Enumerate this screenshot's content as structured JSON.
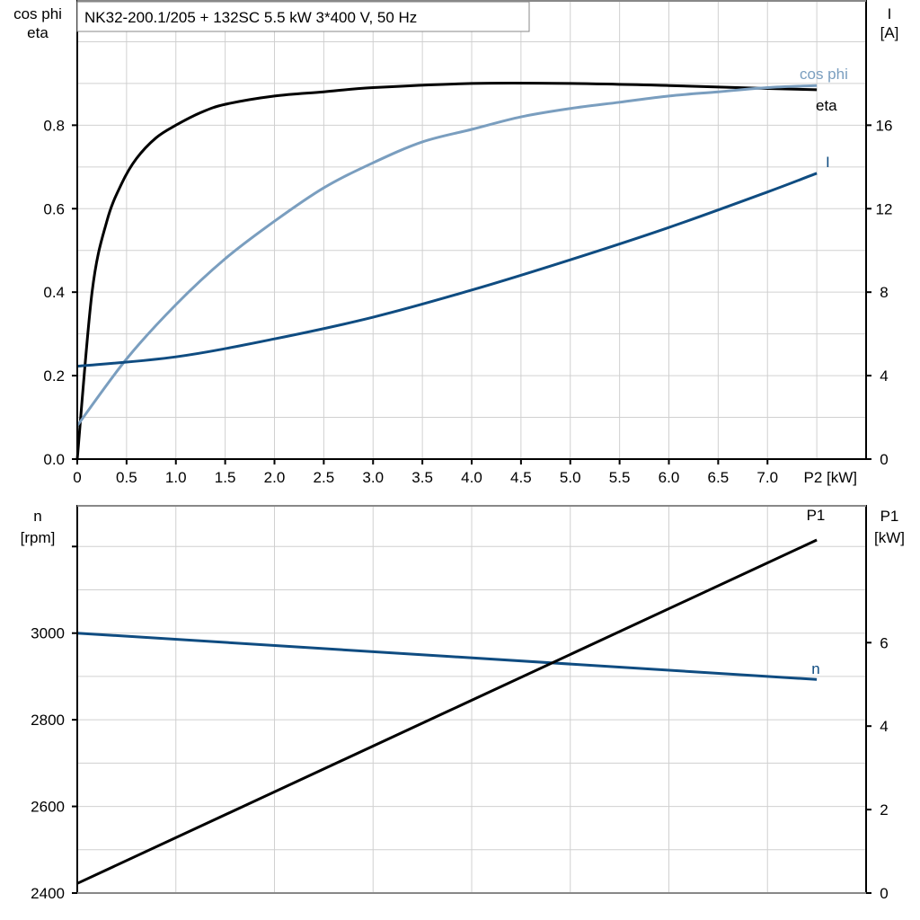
{
  "title": "NK32-200.1/205 + 132SC   5.5 kW   3*400 V, 50 Hz",
  "colors": {
    "eta": "#000000",
    "cosphi": "#7a9ebf",
    "I": "#0f4c81",
    "n": "#0f4c81",
    "P1": "#000000",
    "grid": "#d0d0d0"
  },
  "chart_data": [
    {
      "type": "line",
      "title": "NK32-200.1/205 + 132SC   5.5 kW   3*400 V, 50 Hz",
      "xlabel": "P2 [kW]",
      "ylabel_left": [
        "cos phi",
        "eta"
      ],
      "ylabel_right": [
        "I",
        "[A]"
      ],
      "xlim": [
        0,
        8
      ],
      "ylim_left": [
        0,
        1.1
      ],
      "ylim_right": [
        0,
        22
      ],
      "x_ticks": [
        "0",
        "0.5",
        "1.0",
        "1.5",
        "2.0",
        "2.5",
        "3.0",
        "3.5",
        "4.0",
        "4.5",
        "5.0",
        "5.5",
        "6.0",
        "6.5",
        "7.0"
      ],
      "y_left_ticks": [
        "0.0",
        "0.2",
        "0.4",
        "0.6",
        "0.8"
      ],
      "y_right_ticks": [
        "0",
        "4",
        "8",
        "12",
        "16"
      ],
      "grid": true,
      "series": [
        {
          "name": "eta",
          "axis": "left",
          "x": [
            0,
            0.15,
            0.3,
            0.45,
            0.6,
            0.8,
            1.0,
            1.25,
            1.5,
            2.0,
            2.5,
            3.0,
            4.0,
            5.0,
            6.0,
            7.0,
            7.5
          ],
          "y": [
            0,
            0.4,
            0.57,
            0.66,
            0.72,
            0.77,
            0.8,
            0.83,
            0.85,
            0.87,
            0.88,
            0.89,
            0.9,
            0.9,
            0.895,
            0.888,
            0.885
          ]
        },
        {
          "name": "cos phi",
          "axis": "left",
          "x": [
            0,
            0.5,
            1.0,
            1.5,
            2.0,
            2.5,
            3.0,
            3.5,
            4.0,
            4.5,
            5.0,
            5.5,
            6.0,
            6.5,
            7.0,
            7.5
          ],
          "y": [
            0.08,
            0.24,
            0.37,
            0.48,
            0.57,
            0.65,
            0.71,
            0.76,
            0.79,
            0.82,
            0.84,
            0.855,
            0.87,
            0.88,
            0.89,
            0.895
          ]
        },
        {
          "name": "I",
          "axis": "right",
          "x": [
            0,
            1.0,
            2.0,
            3.0,
            4.0,
            5.0,
            6.0,
            7.0,
            7.5
          ],
          "y": [
            4.45,
            4.9,
            5.76,
            6.8,
            8.1,
            9.55,
            11.1,
            12.8,
            13.7
          ]
        }
      ]
    },
    {
      "type": "line",
      "xlabel": "",
      "ylabel_left": [
        "n",
        "[rpm]"
      ],
      "ylabel_right": [
        "P1",
        "[kW]"
      ],
      "xlim": [
        0,
        8
      ],
      "ylim_left": [
        2400,
        3296
      ],
      "ylim_right": [
        0,
        9.3
      ],
      "y_left_ticks": [
        "2400",
        "2600",
        "2800",
        "3000"
      ],
      "y_right_ticks": [
        "0",
        "2",
        "4",
        "6"
      ],
      "grid": true,
      "series": [
        {
          "name": "n",
          "axis": "left",
          "x": [
            0,
            7.5
          ],
          "y": [
            3000,
            2893
          ]
        },
        {
          "name": "P1",
          "axis": "right",
          "x": [
            0,
            7.5
          ],
          "y": [
            0.23,
            8.46
          ]
        }
      ]
    }
  ]
}
